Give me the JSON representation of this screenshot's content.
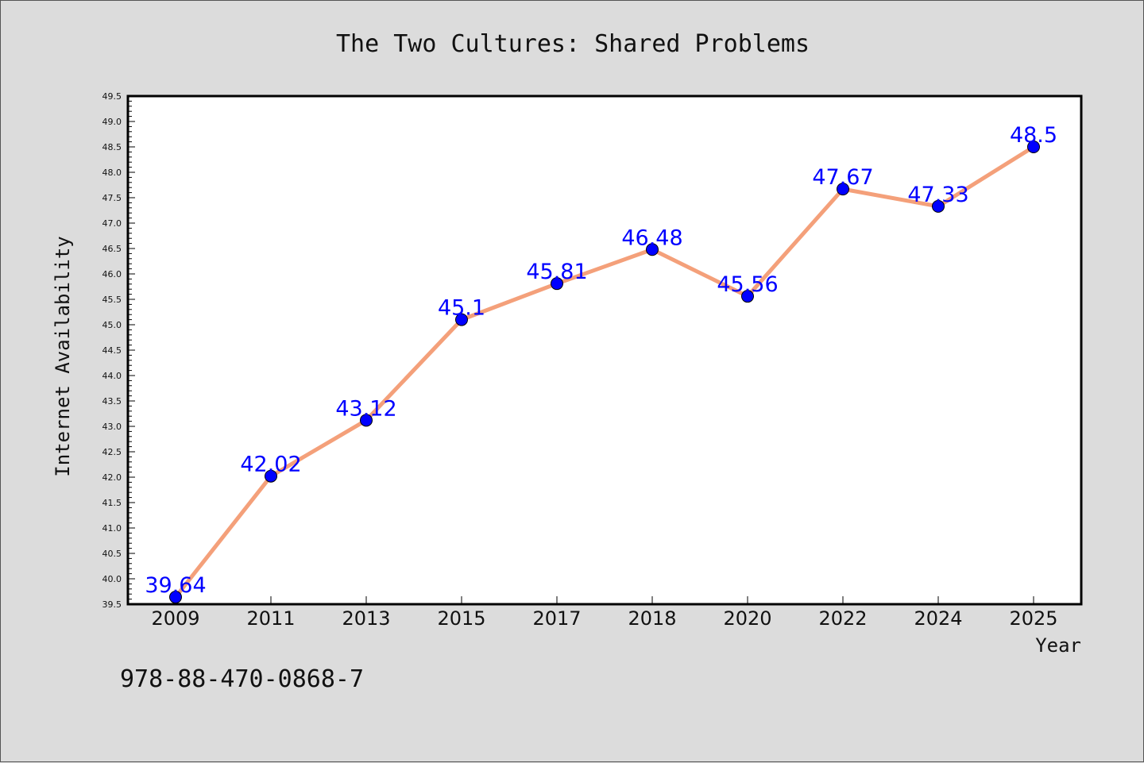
{
  "chart_data": {
    "type": "line",
    "title": "The Two Cultures: Shared Problems",
    "xlabel": "Year",
    "ylabel": "Internet Availability",
    "categories": [
      "2009",
      "2011",
      "2013",
      "2015",
      "2017",
      "2018",
      "2020",
      "2022",
      "2024",
      "2025"
    ],
    "series": [
      {
        "values": [
          39.64,
          42.02,
          43.12,
          45.1,
          45.81,
          46.48,
          45.56,
          47.67,
          47.33,
          48.5
        ],
        "labels": [
          "39.64",
          "42.02",
          "43.12",
          "45.1",
          "45.81",
          "46.48",
          "45.56",
          "47.67",
          "47.33",
          "48.5"
        ]
      }
    ],
    "ylim": [
      39.5,
      49.5
    ],
    "yticks": [
      "39.5",
      "40.0",
      "40.5",
      "41.0",
      "41.5",
      "42.0",
      "42.5",
      "43.0",
      "43.5",
      "44.0",
      "44.5",
      "45.0",
      "45.5",
      "46.0",
      "46.5",
      "47.0",
      "47.5",
      "48.0",
      "48.5",
      "49.0",
      "49.5"
    ],
    "grid": false,
    "colors": {
      "line": "#f4a07a",
      "marker": "#0000ff",
      "label": "#0000ff",
      "background": "#dcdcdc",
      "plot_bg": "#ffffff"
    }
  },
  "annotation": "978-88-470-0868-7"
}
